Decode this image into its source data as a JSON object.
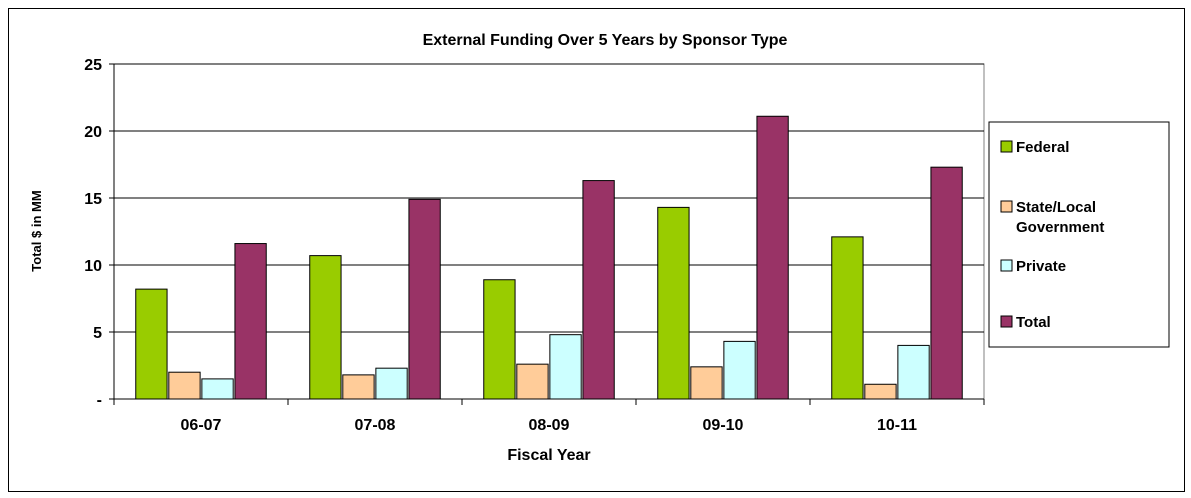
{
  "chart_data": {
    "type": "bar",
    "title": "External Funding Over 5 Years by Sponsor Type",
    "xlabel": "Fiscal Year",
    "ylabel": "Total $ in MM",
    "categories": [
      "06-07",
      "07-08",
      "08-09",
      "09-10",
      "10-11"
    ],
    "ylim": [
      0,
      25
    ],
    "yticks": [
      0,
      5,
      10,
      15,
      20,
      25
    ],
    "ytick_labels": [
      "-",
      "5",
      "10",
      "15",
      "20",
      "25"
    ],
    "grid": true,
    "legend_position": "right",
    "series": [
      {
        "name": "Federal",
        "color": "#99cc00",
        "values": [
          8.2,
          10.7,
          8.9,
          14.3,
          12.1
        ]
      },
      {
        "name": "State/Local Government",
        "legend_lines": [
          "State/Local",
          "Government"
        ],
        "color": "#ffcc99",
        "values": [
          2.0,
          1.8,
          2.6,
          2.4,
          1.1
        ]
      },
      {
        "name": "Private",
        "color": "#ccffff",
        "values": [
          1.5,
          2.3,
          4.8,
          4.3,
          4.0
        ]
      },
      {
        "name": "Total",
        "color": "#993366",
        "values": [
          11.6,
          14.9,
          16.3,
          21.1,
          17.3
        ]
      }
    ]
  }
}
